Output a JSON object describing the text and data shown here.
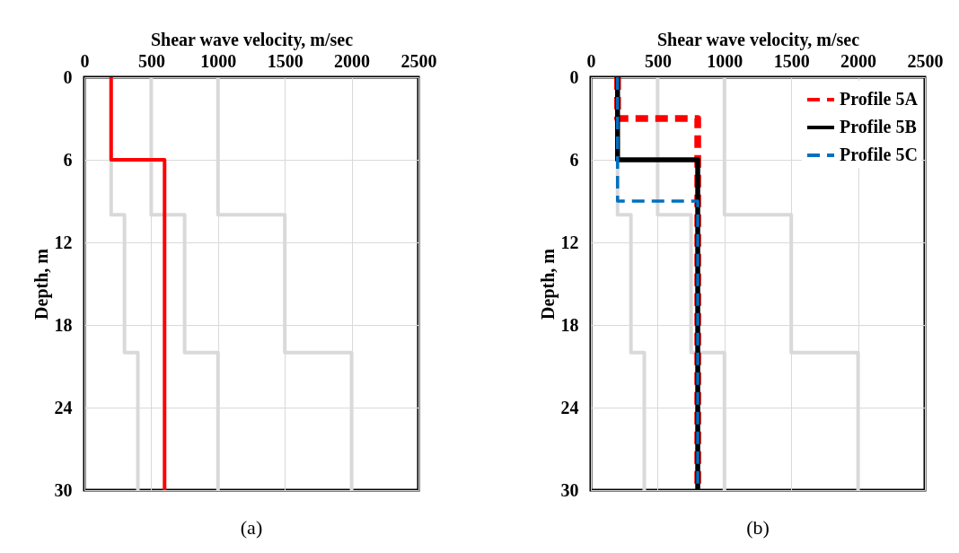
{
  "chart_data": [
    {
      "type": "line",
      "xlabel": "Shear wave velocity, m/sec",
      "ylabel": "Depth, m",
      "xlim": [
        0,
        2500
      ],
      "xticks": [
        0,
        500,
        1000,
        1500,
        2000,
        2500
      ],
      "ylim": [
        30,
        0
      ],
      "yticks": [
        0,
        6,
        12,
        18,
        24,
        30
      ],
      "grid": true,
      "line_style": "solid",
      "annotations": [
        "(a)"
      ],
      "series": [
        {
          "color": "#d9d9d9",
          "x": [
            200,
            200,
            300,
            300,
            400,
            400
          ],
          "values": [
            0,
            10,
            10,
            20,
            20,
            30
          ]
        },
        {
          "color": "#d9d9d9",
          "x": [
            500,
            500,
            750,
            750,
            1000,
            1000
          ],
          "values": [
            0,
            10,
            10,
            20,
            20,
            30
          ]
        },
        {
          "color": "#d9d9d9",
          "x": [
            1000,
            1000,
            1500,
            1500,
            2000,
            2000
          ],
          "values": [
            0,
            10,
            10,
            20,
            20,
            30
          ]
        },
        {
          "color": "#ff0000",
          "x": [
            200,
            200,
            600,
            600
          ],
          "values": [
            0,
            6,
            6,
            30
          ]
        }
      ]
    },
    {
      "type": "line",
      "xlabel": "Shear wave velocity, m/sec",
      "ylabel": "Depth, m",
      "xlim": [
        0,
        2500
      ],
      "xticks": [
        0,
        500,
        1000,
        1500,
        2000,
        2500
      ],
      "ylim": [
        30,
        0
      ],
      "yticks": [
        0,
        6,
        12,
        18,
        24,
        30
      ],
      "grid": true,
      "legend": "top right",
      "annotations": [
        "(b)"
      ],
      "series": [
        {
          "color": "#d9d9d9",
          "x": [
            200,
            200,
            300,
            300,
            400,
            400
          ],
          "values": [
            0,
            10,
            10,
            20,
            20,
            30
          ]
        },
        {
          "color": "#d9d9d9",
          "x": [
            500,
            500,
            750,
            750,
            1000,
            1000
          ],
          "values": [
            0,
            10,
            10,
            20,
            20,
            30
          ]
        },
        {
          "color": "#d9d9d9",
          "x": [
            1000,
            1000,
            1500,
            1500,
            2000,
            2000
          ],
          "values": [
            0,
            10,
            10,
            20,
            20,
            30
          ]
        },
        {
          "name": "Profile 5A",
          "color": "#ff0000",
          "line_style": "dashed",
          "x": [
            200,
            200,
            800,
            800
          ],
          "values": [
            0,
            3,
            3,
            30
          ]
        },
        {
          "name": "Profile 5B",
          "color": "#000000",
          "line_style": "solid",
          "x": [
            200,
            200,
            800,
            800
          ],
          "values": [
            0,
            6,
            6,
            30
          ]
        },
        {
          "name": "Profile 5C",
          "color": "#0070c0",
          "line_style": "dashed",
          "x": [
            200,
            200,
            800,
            800
          ],
          "values": [
            0,
            9,
            9,
            30
          ]
        }
      ]
    }
  ]
}
